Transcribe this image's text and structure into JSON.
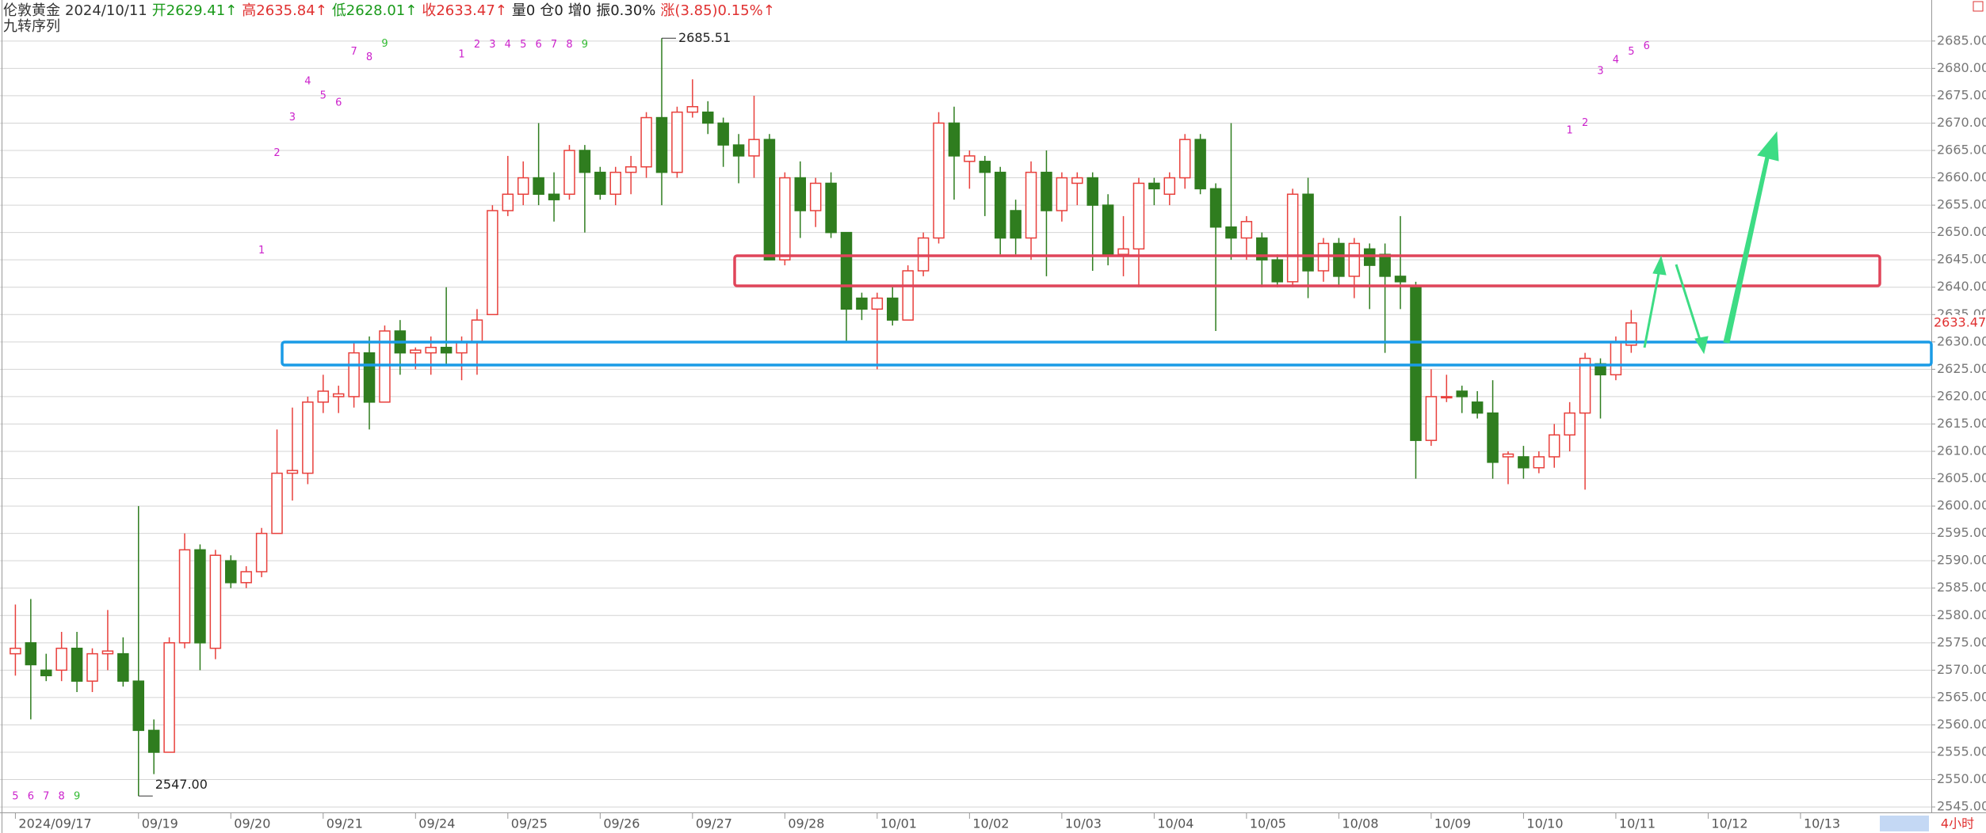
{
  "header": {
    "symbol": "伦敦黄金",
    "date": "2024/10/11",
    "fields": [
      {
        "text": "开2629.41↑",
        "color": "#1a9a1a"
      },
      {
        "text": "高2635.84↑",
        "color": "#e03030"
      },
      {
        "text": "低2628.01↑",
        "color": "#1a9a1a"
      },
      {
        "text": "收2633.47↑",
        "color": "#e03030"
      },
      {
        "text": "量0",
        "color": "#222222"
      },
      {
        "text": "仓0",
        "color": "#222222"
      },
      {
        "text": "增0",
        "color": "#222222"
      },
      {
        "text": "振0.30%",
        "color": "#222222"
      },
      {
        "text": "涨(3.85)0.15%↑",
        "color": "#e03030"
      }
    ],
    "indicator": "九转序列",
    "period": "4小时"
  },
  "chart_data": {
    "type": "candlestick",
    "up_color": "#e8403c",
    "down_color": "#2f7d1f",
    "grid": true,
    "xlim": [
      -1,
      124.5
    ],
    "ylim": [
      2544,
      2692.5
    ],
    "xticks": [
      {
        "value": 0,
        "label": "2024/09/17"
      },
      {
        "value": 8,
        "label": "09/19"
      },
      {
        "value": 14,
        "label": "09/20"
      },
      {
        "value": 20,
        "label": "09/21"
      },
      {
        "value": 26,
        "label": "09/24"
      },
      {
        "value": 32,
        "label": "09/25"
      },
      {
        "value": 38,
        "label": "09/26"
      },
      {
        "value": 44,
        "label": "09/27"
      },
      {
        "value": 50,
        "label": "09/28"
      },
      {
        "value": 56,
        "label": "10/01"
      },
      {
        "value": 62,
        "label": "10/02"
      },
      {
        "value": 68,
        "label": "10/03"
      },
      {
        "value": 74,
        "label": "10/04"
      },
      {
        "value": 80,
        "label": "10/05"
      },
      {
        "value": 86,
        "label": "10/08"
      },
      {
        "value": 92,
        "label": "10/09"
      },
      {
        "value": 98,
        "label": "10/10"
      },
      {
        "value": 104,
        "label": "10/11"
      },
      {
        "value": 110,
        "label": "10/12"
      },
      {
        "value": 116,
        "label": "10/13"
      }
    ],
    "yticks": [
      {
        "value": 2545,
        "label": "2545.00"
      },
      {
        "value": 2550,
        "label": "2550.00"
      },
      {
        "value": 2555,
        "label": "2555.00"
      },
      {
        "value": 2560,
        "label": "2560.00"
      },
      {
        "value": 2565,
        "label": "2565.00"
      },
      {
        "value": 2570,
        "label": "2570.00"
      },
      {
        "value": 2575,
        "label": "2575.00"
      },
      {
        "value": 2580,
        "label": "2580.00"
      },
      {
        "value": 2585,
        "label": "2585.00"
      },
      {
        "value": 2590,
        "label": "2590.00"
      },
      {
        "value": 2595,
        "label": "2595.00"
      },
      {
        "value": 2600,
        "label": "2600.00"
      },
      {
        "value": 2605,
        "label": "2605.00"
      },
      {
        "value": 2610,
        "label": "2610.00"
      },
      {
        "value": 2615,
        "label": "2615.00"
      },
      {
        "value": 2620,
        "label": "2620.00"
      },
      {
        "value": 2625,
        "label": "2625.00"
      },
      {
        "value": 2630,
        "label": "2630.00"
      },
      {
        "value": 2635,
        "label": "2635.00"
      },
      {
        "value": 2640,
        "label": "2640.00"
      },
      {
        "value": 2645,
        "label": "2645.00"
      },
      {
        "value": 2650,
        "label": "2650.00"
      },
      {
        "value": 2655,
        "label": "2655.00"
      },
      {
        "value": 2660,
        "label": "2660.00"
      },
      {
        "value": 2665,
        "label": "2665.00"
      },
      {
        "value": 2670,
        "label": "2670.00"
      },
      {
        "value": 2675,
        "label": "2675.00"
      },
      {
        "value": 2680,
        "label": "2680.00"
      },
      {
        "value": 2685,
        "label": "2685.00"
      }
    ],
    "open": [
      2573,
      2575,
      2570,
      2570,
      2574,
      2568,
      2573,
      2573,
      2568,
      2559,
      2555,
      2575,
      2592,
      2574,
      2590,
      2586,
      2588,
      2595,
      2606,
      2606,
      2619,
      2620,
      2620,
      2628,
      2619,
      2632,
      2628,
      2628,
      2629,
      2628,
      2630,
      2635,
      2654,
      2657,
      2660,
      2657,
      2657,
      2665,
      2661,
      2657,
      2661,
      2662,
      2671,
      2661,
      2672,
      2672,
      2670,
      2666,
      2664,
      2667,
      2645,
      2660,
      2654,
      2659,
      2650,
      2638,
      2636,
      2638,
      2634,
      2643,
      2649,
      2670,
      2663,
      2663,
      2661,
      2654,
      2649,
      2661,
      2654,
      2659,
      2660,
      2655,
      2646,
      2647,
      2659,
      2657,
      2660,
      2667,
      2658,
      2651,
      2649,
      2649,
      2645,
      2641,
      2657,
      2643,
      2648,
      2642,
      2647,
      2646,
      2642,
      2640,
      2612,
      2620,
      2621,
      2619,
      2617,
      2609,
      2609,
      2607,
      2609,
      2613,
      2617,
      2626,
      2624,
      2629.41
    ],
    "high": [
      2582,
      2583,
      2573,
      2577,
      2577,
      2574,
      2581,
      2576,
      2600,
      2561,
      2576,
      2595,
      2593,
      2592,
      2591,
      2589,
      2596,
      2614,
      2618,
      2620,
      2624,
      2622,
      2630,
      2631,
      2633,
      2634,
      2629,
      2631,
      2640,
      2631,
      2636,
      2655,
      2664,
      2663,
      2670,
      2661,
      2666,
      2666,
      2662,
      2662,
      2664,
      2672,
      2685.51,
      2673,
      2678,
      2674,
      2671,
      2668,
      2675,
      2668,
      2661,
      2663,
      2660,
      2661,
      2650,
      2639,
      2639,
      2640,
      2644,
      2650,
      2672,
      2673,
      2665,
      2664,
      2662,
      2656,
      2663,
      2665,
      2661,
      2661,
      2661,
      2657,
      2653,
      2660,
      2660,
      2661,
      2668,
      2668,
      2659,
      2670,
      2653,
      2650,
      2646,
      2658,
      2660,
      2649,
      2649,
      2649,
      2648,
      2648,
      2653,
      2641,
      2625,
      2624,
      2622,
      2621,
      2623,
      2610,
      2611,
      2610,
      2615,
      2619,
      2628,
      2627,
      2631,
      2635.84
    ],
    "low": [
      2569,
      2561,
      2568,
      2568,
      2566,
      2566,
      2570,
      2567,
      2547,
      2551,
      2555,
      2574,
      2570,
      2572,
      2585,
      2585,
      2587,
      2595,
      2601,
      2604,
      2617,
      2617,
      2618,
      2614,
      2619,
      2624,
      2625,
      2624,
      2626,
      2623,
      2624,
      2635,
      2653,
      2655,
      2655,
      2652,
      2656,
      2650,
      2656,
      2655,
      2657,
      2660,
      2655,
      2660,
      2671,
      2668,
      2662,
      2659,
      2660,
      2645,
      2644,
      2649,
      2651,
      2649,
      2630,
      2634,
      2625,
      2633,
      2634,
      2642,
      2648,
      2656,
      2658,
      2653,
      2646,
      2646,
      2645,
      2642,
      2652,
      2655,
      2643,
      2644,
      2642,
      2640,
      2655,
      2655,
      2658,
      2657,
      2632,
      2645,
      2645,
      2640,
      2640,
      2640,
      2638,
      2641,
      2640,
      2638,
      2636,
      2628,
      2636,
      2605,
      2611,
      2619,
      2617,
      2616,
      2605,
      2604,
      2605,
      2606,
      2607,
      2610,
      2603,
      2616,
      2623,
      2628.01
    ],
    "close": [
      2574,
      2571,
      2569,
      2574,
      2568,
      2573,
      2573.5,
      2568,
      2559,
      2555,
      2575,
      2592,
      2575,
      2591,
      2586,
      2588,
      2595,
      2606,
      2606.5,
      2619,
      2621,
      2620.5,
      2628,
      2619,
      2632,
      2628,
      2628.5,
      2629,
      2628,
      2630,
      2634,
      2654,
      2657,
      2660,
      2657,
      2656,
      2665,
      2661,
      2657,
      2661,
      2662,
      2671,
      2661,
      2672,
      2673,
      2670,
      2666,
      2664,
      2667,
      2645,
      2660,
      2654,
      2659,
      2650,
      2636,
      2636,
      2638,
      2634,
      2643,
      2649,
      2670,
      2664,
      2664,
      2661,
      2649,
      2649,
      2661,
      2654,
      2660,
      2660,
      2655,
      2646,
      2647,
      2659,
      2658,
      2660,
      2667,
      2658,
      2651,
      2649,
      2652,
      2645,
      2641,
      2657,
      2643,
      2648,
      2642,
      2648,
      2644,
      2642,
      2641,
      2612,
      2620,
      2620,
      2620,
      2617,
      2608,
      2609.5,
      2607,
      2609,
      2613,
      2617,
      2627,
      2624,
      2630,
      2633.47
    ],
    "max_label": "2685.51",
    "min_label": "2547.00",
    "last_label": "2633.47",
    "td_sequence": [
      {
        "label": "1",
        "x": 16,
        "y": 2646.7,
        "color": "#cc22cc"
      },
      {
        "label": "2",
        "x": 17,
        "y": 2664.5,
        "color": "#cc22cc"
      },
      {
        "label": "3",
        "x": 18,
        "y": 2671,
        "color": "#cc22cc"
      },
      {
        "label": "4",
        "x": 19,
        "y": 2677.6,
        "color": "#cc22cc"
      },
      {
        "label": "5",
        "x": 20,
        "y": 2675,
        "color": "#cc22cc"
      },
      {
        "label": "6",
        "x": 21,
        "y": 2673.7,
        "color": "#cc22cc"
      },
      {
        "label": "7",
        "x": 22,
        "y": 2683,
        "color": "#cc22cc"
      },
      {
        "label": "8",
        "x": 23,
        "y": 2682,
        "color": "#cc22cc"
      },
      {
        "label": "9",
        "x": 24,
        "y": 2684.5,
        "color": "#33bb33"
      },
      {
        "label": "1",
        "x": 29,
        "y": 2682.5,
        "color": "#cc22cc"
      },
      {
        "label": "2",
        "x": 30,
        "y": 2684.3,
        "color": "#cc22cc"
      },
      {
        "label": "3",
        "x": 31,
        "y": 2684.3,
        "color": "#cc22cc"
      },
      {
        "label": "4",
        "x": 32,
        "y": 2684.3,
        "color": "#cc22cc"
      },
      {
        "label": "5",
        "x": 33,
        "y": 2684.3,
        "color": "#cc22cc"
      },
      {
        "label": "6",
        "x": 34,
        "y": 2684.3,
        "color": "#cc22cc"
      },
      {
        "label": "7",
        "x": 35,
        "y": 2684.3,
        "color": "#cc22cc"
      },
      {
        "label": "8",
        "x": 36,
        "y": 2684.3,
        "color": "#cc22cc"
      },
      {
        "label": "9",
        "x": 37,
        "y": 2684.3,
        "color": "#33bb33"
      },
      {
        "label": "5",
        "x": 0,
        "y": 2546.9,
        "color": "#cc22cc"
      },
      {
        "label": "6",
        "x": 1,
        "y": 2546.9,
        "color": "#cc22cc"
      },
      {
        "label": "7",
        "x": 2,
        "y": 2546.9,
        "color": "#cc22cc"
      },
      {
        "label": "8",
        "x": 3,
        "y": 2546.9,
        "color": "#cc22cc"
      },
      {
        "label": "9",
        "x": 4,
        "y": 2546.9,
        "color": "#33bb33"
      },
      {
        "label": "1",
        "x": 101,
        "y": 2668.6,
        "color": "#cc22cc"
      },
      {
        "label": "2",
        "x": 102,
        "y": 2670,
        "color": "#cc22cc"
      },
      {
        "label": "3",
        "x": 103,
        "y": 2679.5,
        "color": "#cc22cc"
      },
      {
        "label": "4",
        "x": 104,
        "y": 2681.5,
        "color": "#cc22cc"
      },
      {
        "label": "5",
        "x": 105,
        "y": 2683,
        "color": "#cc22cc"
      },
      {
        "label": "6",
        "x": 106,
        "y": 2684,
        "color": "#cc22cc"
      }
    ]
  }
}
